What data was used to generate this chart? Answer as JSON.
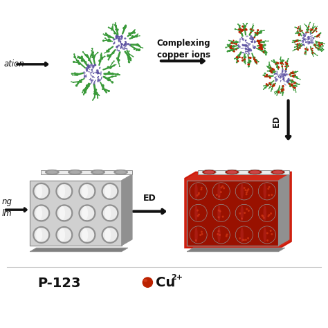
{
  "bg_color": "#ffffff",
  "arrow_color": "#111111",
  "text_color": "#111111",
  "micelle_core_color": "#5a4fa0",
  "micelle_arm_color": "#3a9a3a",
  "cu_ion_color": "#bb2200",
  "cu_dot_color": "#cc3311",
  "red_border_color": "#cc1100",
  "cu_nanowire_color": "#991100",
  "pore_wall_light": "#e0e0e0",
  "pore_wall_mid": "#c0c0c0",
  "pore_wall_dark": "#909090",
  "pore_base": "#808080",
  "label_p123": "P-123",
  "label_complexing_1": "Complexing",
  "label_complexing_2": "copper ions",
  "label_ed_vert": "ED",
  "label_ed_horiz": "ED",
  "label_ation": "ation",
  "label_ng": "ng",
  "label_lm": "lm",
  "figsize": [
    4.74,
    4.74
  ],
  "dpi": 100
}
